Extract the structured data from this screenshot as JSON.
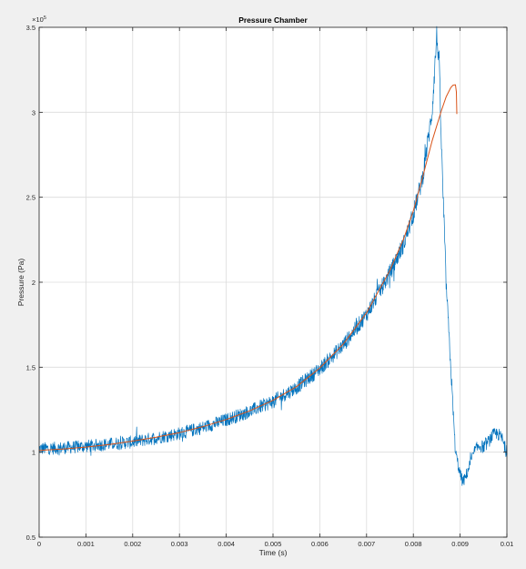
{
  "chart_data": {
    "type": "line",
    "title": "Pressure Chamber",
    "xlabel": "Time (s)",
    "ylabel": "Pressure (Pa)",
    "y_exponent_label": "×10",
    "y_exponent_power": "5",
    "xlim": [
      0,
      0.01
    ],
    "ylim": [
      50000,
      350000
    ],
    "x_ticks": [
      0,
      0.001,
      0.002,
      0.003,
      0.004,
      0.005,
      0.006,
      0.007,
      0.008,
      0.009,
      0.01
    ],
    "x_tick_labels": [
      "0",
      "0.001",
      "0.002",
      "0.003",
      "0.004",
      "0.005",
      "0.006",
      "0.007",
      "0.008",
      "0.009",
      "0.01"
    ],
    "y_ticks": [
      50000,
      100000,
      150000,
      200000,
      250000,
      300000,
      350000
    ],
    "y_tick_labels": [
      "0.5",
      "1",
      "1.5",
      "2",
      "2.5",
      "3",
      "3.5"
    ],
    "grid": true,
    "legend": "none",
    "colors": {
      "measured": "#0072bd",
      "model": "#d95319",
      "grid": "#dcdcdc",
      "axes_background": "#ffffff",
      "figure_background": "#f0f0f0"
    },
    "series": [
      {
        "style": "noisy",
        "color": "#0072bd",
        "x": [
          0,
          0.0005,
          0.001,
          0.0015,
          0.002,
          0.0025,
          0.003,
          0.0035,
          0.004,
          0.0045,
          0.005,
          0.0055,
          0.006,
          0.0065,
          0.007,
          0.0075,
          0.0078,
          0.008,
          0.0082,
          0.0084,
          0.0085,
          0.00855,
          0.0086,
          0.0087,
          0.0088,
          0.0089,
          0.009,
          0.00905,
          0.0091,
          0.0092,
          0.0093,
          0.0094,
          0.0095,
          0.0096,
          0.0097,
          0.0098,
          0.0099,
          0.01
        ],
        "y": [
          102000,
          102500,
          103500,
          104800,
          106000,
          108500,
          111000,
          114500,
          119000,
          124000,
          130000,
          138000,
          149000,
          163000,
          181000,
          205500,
          223000,
          240000,
          262000,
          300000,
          345000,
          330000,
          280000,
          200000,
          150000,
          100000,
          87000,
          83000,
          84000,
          92000,
          100000,
          104000,
          103000,
          106000,
          110000,
          111000,
          108000,
          99000
        ]
      },
      {
        "style": "smooth",
        "color": "#d95319",
        "x": [
          0,
          0.0005,
          0.001,
          0.0015,
          0.002,
          0.0025,
          0.003,
          0.0035,
          0.004,
          0.0045,
          0.005,
          0.0055,
          0.006,
          0.0065,
          0.007,
          0.0075,
          0.0078,
          0.008,
          0.0082,
          0.0084,
          0.0086,
          0.0087,
          0.0088,
          0.00885,
          0.0089,
          0.00892,
          0.00893
        ],
        "y": [
          101000,
          101800,
          103000,
          104500,
          106500,
          108800,
          111500,
          115000,
          119200,
          124300,
          130500,
          138500,
          149500,
          163500,
          182000,
          207000,
          226000,
          242000,
          262000,
          283000,
          301000,
          309000,
          314500,
          316000,
          316200,
          312000,
          299000
        ]
      }
    ]
  }
}
